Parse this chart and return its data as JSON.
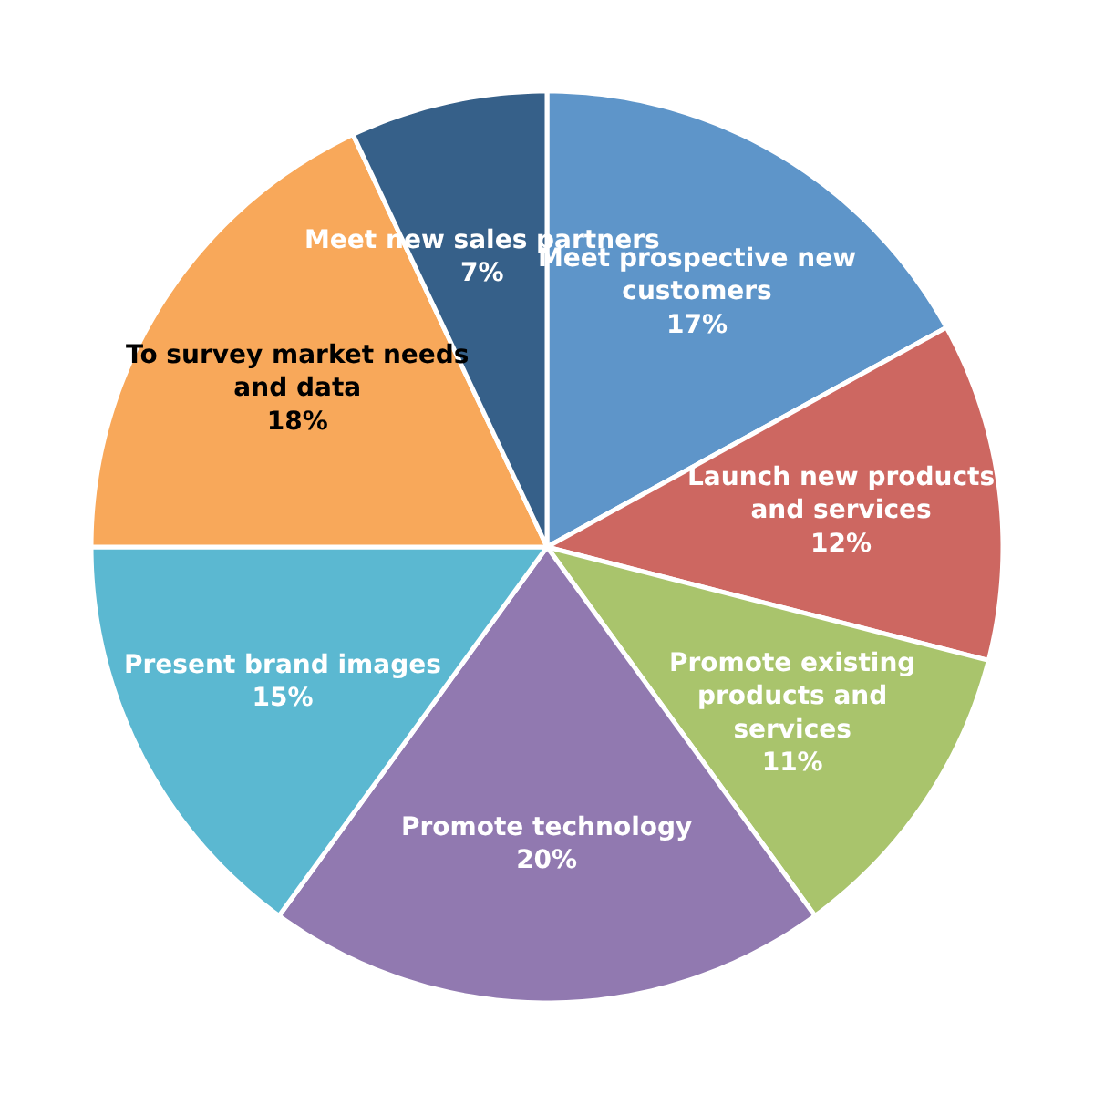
{
  "chart_data": {
    "type": "pie",
    "categories": [
      "Meet prospective new\ncustomers",
      "Launch new products\nand services",
      "Promote existing\nproducts and\nservices",
      "Promote technology",
      "Present brand images",
      "To survey market needs\nand data",
      "Meet new sales partners"
    ],
    "values": [
      17,
      12,
      11,
      20,
      15,
      18,
      7
    ],
    "value_labels": [
      "17%",
      "12%",
      "11%",
      "20%",
      "15%",
      "18%",
      "7%"
    ],
    "colors": [
      "#5e95c9",
      "#cd6761",
      "#a9c46c",
      "#9179b0",
      "#5bb8d1",
      "#f8a85a",
      "#366089"
    ],
    "legend": false
  }
}
